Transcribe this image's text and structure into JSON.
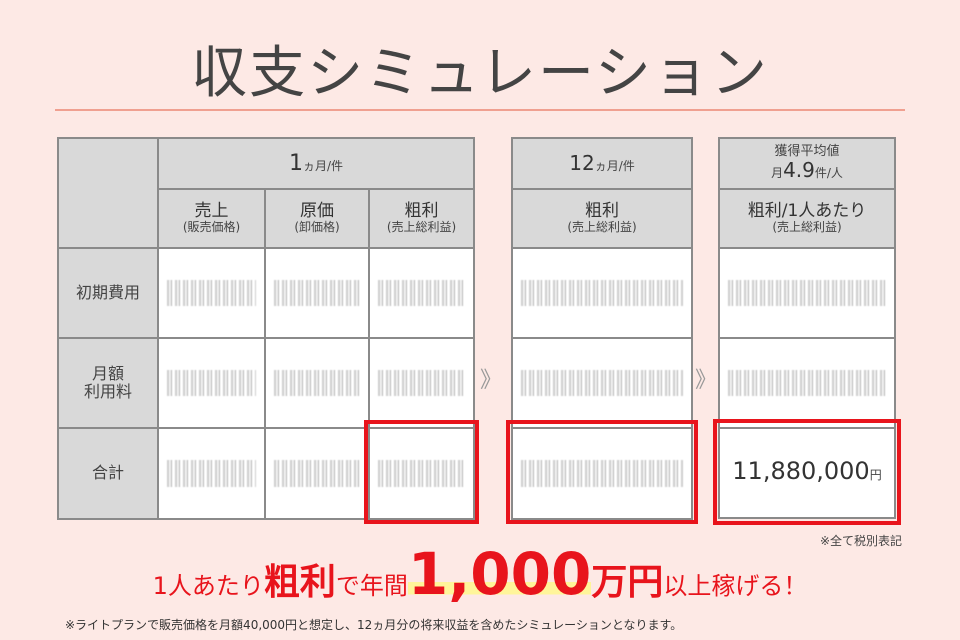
{
  "title": "収支シミュレーション",
  "table1": {
    "header_top": {
      "num": "1",
      "unit": "ヵ月/件"
    },
    "columns": [
      {
        "label": "売上",
        "sub": "(販売価格)"
      },
      {
        "label": "原価",
        "sub": "(卸価格)"
      },
      {
        "label": "粗利",
        "sub": "(売上総利益)"
      }
    ],
    "rows": [
      "初期費用",
      "月額\n利用料",
      "合計"
    ]
  },
  "table2": {
    "header_top": {
      "num": "12",
      "unit": "ヵ月/件"
    },
    "column": {
      "label": "粗利",
      "sub": "(売上総利益)"
    }
  },
  "table3": {
    "header_top": {
      "line1": "獲得平均値",
      "pre": "月",
      "num": "4.9",
      "unit": "件/人"
    },
    "column": {
      "label": "粗利/1人あたり",
      "sub": "(売上総利益)"
    },
    "total": {
      "value": "11,880,000",
      "unit": "円"
    }
  },
  "arrow": "》",
  "note_tax": "※全て税別表記",
  "slogan": {
    "p1": "1人あたり",
    "p2": "粗利",
    "p3": "で年間",
    "p4": "1,000",
    "p5": "万円",
    "p6": "以上稼げる！"
  },
  "footnote": "※ライトプランで販売価格を月額40,000円と想定し、12ヵ月分の将来収益を含めたシミュレーションとなります。",
  "colors": {
    "accent": "#e8141c",
    "header_fill": "#d9d9d9",
    "background": "#fde9e5"
  }
}
